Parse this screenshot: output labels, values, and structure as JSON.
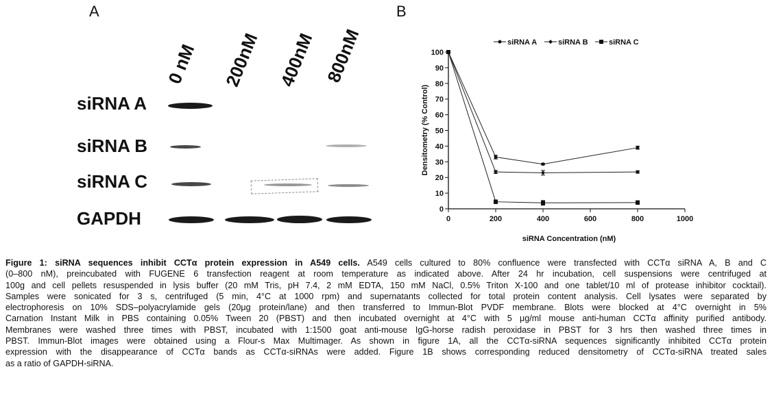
{
  "panels": {
    "a": "A",
    "b": "B"
  },
  "blot": {
    "columns": [
      "0 nM",
      "200nM",
      "400nM",
      "800nM"
    ],
    "rows": [
      "siRNA A",
      "siRNA B",
      "siRNA C",
      "GAPDH"
    ]
  },
  "chart_data": {
    "type": "line",
    "title": "",
    "xlabel": "siRNA Concentration (nM)",
    "ylabel": "Densitometry (% Control)",
    "xlim": [
      0,
      1000
    ],
    "ylim": [
      0,
      100
    ],
    "xticks": [
      0,
      200,
      400,
      600,
      800,
      1000
    ],
    "yticks": [
      0,
      10,
      20,
      30,
      40,
      50,
      60,
      70,
      80,
      90,
      100
    ],
    "x": [
      0,
      200,
      400,
      800
    ],
    "legend_position": "top",
    "series": [
      {
        "name": "siRNA A",
        "values": [
          100,
          33,
          28.5,
          39
        ],
        "errors": [
          0,
          1.2,
          0.5,
          1
        ]
      },
      {
        "name": "siRNA B",
        "values": [
          100,
          23.5,
          23,
          23.5
        ],
        "errors": [
          0,
          1,
          1.5,
          0.8
        ]
      },
      {
        "name": "siRNA C",
        "values": [
          100,
          4.5,
          3.8,
          4
        ],
        "errors": [
          0,
          1.2,
          1.5,
          1.2
        ]
      }
    ]
  },
  "caption": {
    "bold": "Figure 1: siRNA sequences inhibit CCTα protein expression in A549 cells.",
    "lines": [
      " A549 cells cultured to 80% confluence were transfected with CCTα siRNA A, B and C",
      "(0–800 nM), preincubated with FUGENE 6 transfection reagent at room temperature as indicated above. After 24 hr incubation, cell suspensions were centrifuged at",
      "100g and cell pellets resuspended in lysis buffer (20 mM Tris, pH 7.4, 2 mM EDTA, 150 mM NaCl, 0.5% Triton X-100 and one tablet/10 ml of protease inhibitor cocktail).",
      "Samples were sonicated for 3 s, centrifuged (5 min, 4°C at 1000 rpm) and supernatants collected for total protein content analysis. Cell lysates were separated by",
      "electrophoresis on 10% SDS–polyacrylamide gels (20μg protein/lane) and then transferred to Immun-Blot PVDF membrane. Blots were blocked at 4°C overnight in 5%",
      "Carnation Instant Milk in PBS containing 0.05% Tween 20 (PBST) and then incubated overnight at 4°C with 5 μg/ml mouse anti-human CCTα affinity purified antibody.",
      "Membranes were washed three times with PBST, incubated with 1:1500 goat anti-mouse IgG-horse radish peroxidase in PBST for 3 hrs then washed three times in",
      "PBST. Immun-Blot images were obtained using a Flour-s Max Multimager. As shown in figure 1A, all the CCTα-siRNA sequences significantly inhibited CCTα protein",
      "expression with the disappearance of CCTα bands as CCTα-siRNAs were added. Figure 1B shows corresponding reduced densitometry of CCTα-siRNA treated sales",
      "as a ratio of GAPDH-siRNA."
    ]
  }
}
